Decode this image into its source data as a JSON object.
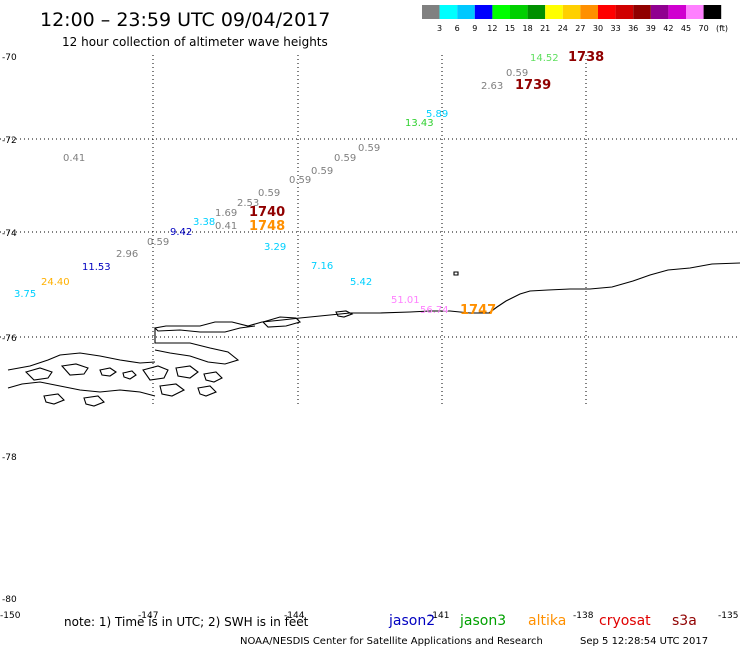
{
  "header": {
    "title": "12:00 – 23:59 UTC 09/04/2017",
    "subtitle": "12 hour collection of altimeter wave heights"
  },
  "scale": {
    "colors": [
      "#808080",
      "#00ffff",
      "#00c8ff",
      "#0000ff",
      "#00ff00",
      "#00d000",
      "#009000",
      "#ffff00",
      "#ffd000",
      "#ff9000",
      "#ff0000",
      "#d00000",
      "#900000",
      "#900090",
      "#d000d0",
      "#ff80ff",
      "#000000"
    ],
    "labels": [
      "3",
      "6",
      "9",
      "12",
      "15",
      "18",
      "21",
      "24",
      "27",
      "30",
      "33",
      "36",
      "39",
      "42",
      "45",
      "70"
    ],
    "unit": "(ft)"
  },
  "axes": {
    "lat_labels": [
      "-70",
      "-72",
      "-74",
      "-76",
      "-78",
      "-80"
    ],
    "lon_labels": [
      "-150",
      "-147",
      "-144",
      "-141",
      "-138",
      "-135"
    ]
  },
  "observations": [
    {
      "text": "14.52",
      "color": "#60e060"
    },
    {
      "text": "1738",
      "color": "#900000"
    },
    {
      "text": "0.59",
      "color": "#808080"
    },
    {
      "text": "2.63",
      "color": "#808080"
    },
    {
      "text": "1739",
      "color": "#900000"
    },
    {
      "text": "5.89",
      "color": "#00d0ff"
    },
    {
      "text": "13.43",
      "color": "#30d030"
    },
    {
      "text": "0.59",
      "color": "#808080"
    },
    {
      "text": "0.41",
      "color": "#808080"
    },
    {
      "text": "0.59",
      "color": "#808080"
    },
    {
      "text": "0.59",
      "color": "#808080"
    },
    {
      "text": "0.59",
      "color": "#808080"
    },
    {
      "text": "0.59",
      "color": "#808080"
    },
    {
      "text": "2.53",
      "color": "#808080"
    },
    {
      "text": "1.69",
      "color": "#808080"
    },
    {
      "text": "1740",
      "color": "#900000"
    },
    {
      "text": "3.38",
      "color": "#00d0ff"
    },
    {
      "text": "0.41",
      "color": "#808080"
    },
    {
      "text": "1748",
      "color": "#ff9000"
    },
    {
      "text": "9.42",
      "color": "#0000c0"
    },
    {
      "text": "0.59",
      "color": "#808080"
    },
    {
      "text": "3.29",
      "color": "#00d0ff"
    },
    {
      "text": "2.96",
      "color": "#808080"
    },
    {
      "text": "11.53",
      "color": "#0000c0"
    },
    {
      "text": "7.16",
      "color": "#00d0ff"
    },
    {
      "text": "24.40",
      "color": "#ffb000"
    },
    {
      "text": "5.42",
      "color": "#00d0ff"
    },
    {
      "text": "3.75",
      "color": "#00d0ff"
    },
    {
      "text": "51.01",
      "color": "#ff80ff"
    },
    {
      "text": "56.74",
      "color": "#ff80ff"
    },
    {
      "text": "1747",
      "color": "#ff9000"
    }
  ],
  "footer": {
    "note": "note: 1) Time is in UTC; 2) SWH is in feet",
    "satellites": [
      {
        "name": "jason2",
        "color": "#0000c0"
      },
      {
        "name": "jason3",
        "color": "#00a000"
      },
      {
        "name": "altika",
        "color": "#ff9000"
      },
      {
        "name": "cryosat",
        "color": "#e00000"
      },
      {
        "name": "s3a",
        "color": "#900000"
      }
    ],
    "credit": "NOAA/NESDIS Center for Satellite Applications and Research",
    "timestamp": "Sep  5 12:28:54 UTC 2017"
  }
}
